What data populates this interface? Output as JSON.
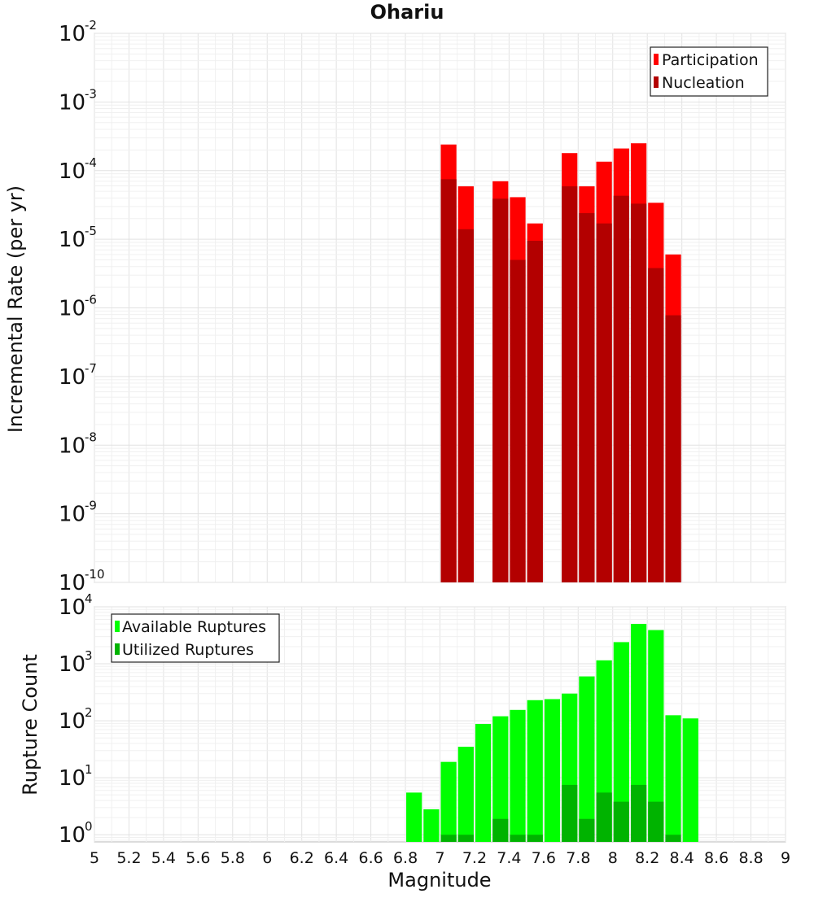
{
  "chart_data": [
    {
      "type": "bar",
      "title": "Ohariu",
      "xlabel": "",
      "ylabel": "Incremental Rate (per yr)",
      "yscale": "log",
      "ylim": [
        1e-10,
        0.01
      ],
      "xlim": [
        5,
        9
      ],
      "grid": true,
      "legend_position": "top-right",
      "yticks": [
        {
          "base": "10",
          "exp": "-10"
        },
        {
          "base": "10",
          "exp": "-9"
        },
        {
          "base": "10",
          "exp": "-8"
        },
        {
          "base": "10",
          "exp": "-7"
        },
        {
          "base": "10",
          "exp": "-6"
        },
        {
          "base": "10",
          "exp": "-5"
        },
        {
          "base": "10",
          "exp": "-4"
        },
        {
          "base": "10",
          "exp": "-3"
        },
        {
          "base": "10",
          "exp": "-2"
        }
      ],
      "series": [
        {
          "name": "Participation",
          "color": "#ff0000",
          "x": [
            7.05,
            7.15,
            7.35,
            7.45,
            7.55,
            7.75,
            7.85,
            7.95,
            8.05,
            8.15,
            8.25,
            8.35
          ],
          "values": [
            0.00024,
            5.9e-05,
            7e-05,
            4.1e-05,
            1.7e-05,
            0.00018,
            5.9e-05,
            0.000135,
            0.00021,
            0.00025,
            3.4e-05,
            6e-06
          ]
        },
        {
          "name": "Nucleation",
          "color": "#b30000",
          "x": [
            7.05,
            7.15,
            7.35,
            7.45,
            7.55,
            7.75,
            7.85,
            7.95,
            8.05,
            8.15,
            8.25,
            8.35
          ],
          "values": [
            7.5e-05,
            1.4e-05,
            3.9e-05,
            5e-06,
            9.5e-06,
            5.9e-05,
            2.4e-05,
            1.7e-05,
            4.3e-05,
            3.3e-05,
            3.8e-06,
            7.8e-07
          ]
        }
      ]
    },
    {
      "type": "bar",
      "title": "",
      "xlabel": "Magnitude",
      "ylabel": "Rupture Count",
      "yscale": "log",
      "ylim": [
        0.75,
        10000
      ],
      "xlim": [
        5,
        9
      ],
      "grid": true,
      "legend_position": "top-left",
      "xticks": [
        "5",
        "5.2",
        "5.4",
        "5.6",
        "5.8",
        "6",
        "6.2",
        "6.4",
        "6.6",
        "6.8",
        "7",
        "7.2",
        "7.4",
        "7.6",
        "7.8",
        "8",
        "8.2",
        "8.4",
        "8.6",
        "8.8",
        "9"
      ],
      "yticks": [
        {
          "base": "10",
          "exp": "0"
        },
        {
          "base": "10",
          "exp": "1"
        },
        {
          "base": "10",
          "exp": "2"
        },
        {
          "base": "10",
          "exp": "3"
        },
        {
          "base": "10",
          "exp": "4"
        }
      ],
      "series": [
        {
          "name": "Available Ruptures",
          "color": "#00ff00",
          "x": [
            6.85,
            6.95,
            7.05,
            7.15,
            7.25,
            7.35,
            7.45,
            7.55,
            7.65,
            7.75,
            7.85,
            7.95,
            8.05,
            8.15,
            8.25,
            8.35,
            8.45
          ],
          "values": [
            5.5,
            2.8,
            19,
            35,
            88,
            120,
            155,
            230,
            240,
            300,
            600,
            1150,
            2400,
            5000,
            3900,
            125,
            110
          ]
        },
        {
          "name": "Utilized Ruptures",
          "color": "#00b300",
          "x": [
            7.05,
            7.15,
            7.35,
            7.45,
            7.55,
            7.75,
            7.85,
            7.95,
            8.05,
            8.15,
            8.25,
            8.35
          ],
          "values": [
            1,
            1,
            1.9,
            1,
            1,
            7.5,
            1.9,
            5.5,
            3.8,
            7.5,
            3.8,
            1
          ]
        }
      ]
    }
  ]
}
